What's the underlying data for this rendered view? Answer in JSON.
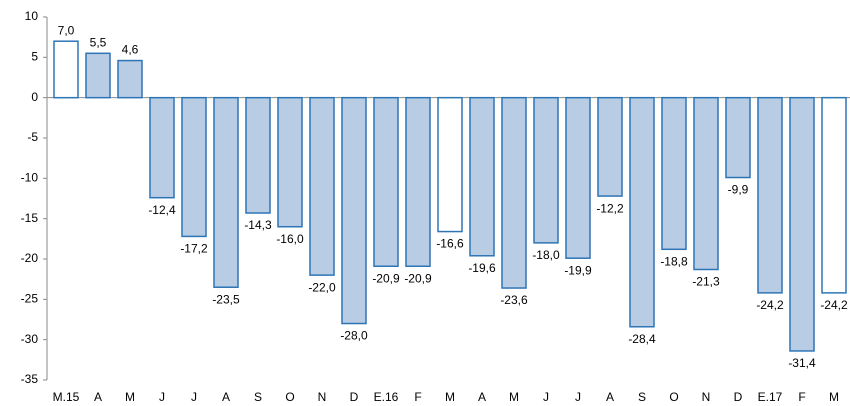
{
  "chart_data": {
    "type": "bar",
    "categories": [
      "M.15",
      "A",
      "M",
      "J",
      "J",
      "A",
      "S",
      "O",
      "N",
      "D",
      "E.16",
      "F",
      "M",
      "A",
      "M",
      "J",
      "J",
      "A",
      "S",
      "O",
      "N",
      "D",
      "E.17",
      "F",
      "M"
    ],
    "values": [
      7.0,
      5.5,
      4.6,
      -12.4,
      -17.2,
      -23.5,
      -14.3,
      -16.0,
      -22.0,
      -28.0,
      -20.9,
      -20.9,
      -16.6,
      -19.6,
      -23.6,
      -18.0,
      -19.9,
      -12.2,
      -28.4,
      -18.8,
      -21.3,
      -9.9,
      -24.2,
      -31.4,
      -24.2
    ],
    "value_labels": [
      "7,0",
      "5,5",
      "4,6",
      "-12,4",
      "-17,2",
      "-23,5",
      "-14,3",
      "-16,0",
      "-22,0",
      "-28,0",
      "-20,9",
      "-20,9",
      "-16,6",
      "-19,6",
      "-23,6",
      "-18,0",
      "-19,9",
      "-12,2",
      "-28,4",
      "-18,8",
      "-21,3",
      "-9,9",
      "-24,2",
      "-31,4",
      "-24,2"
    ],
    "colors": [
      "#ffffff",
      "#b8cce4",
      "#b8cce4",
      "#b8cce4",
      "#b8cce4",
      "#b8cce4",
      "#b8cce4",
      "#b8cce4",
      "#b8cce4",
      "#b8cce4",
      "#b8cce4",
      "#b8cce4",
      "#ffffff",
      "#b8cce4",
      "#b8cce4",
      "#b8cce4",
      "#b8cce4",
      "#b8cce4",
      "#b8cce4",
      "#b8cce4",
      "#b8cce4",
      "#b8cce4",
      "#b8cce4",
      "#b8cce4",
      "#ffffff"
    ],
    "edge_color": "#2e75b6",
    "ylim": [
      -35,
      10
    ],
    "yticks": [
      -35,
      -30,
      -25,
      -20,
      -15,
      -10,
      -5,
      0,
      5,
      10
    ]
  }
}
